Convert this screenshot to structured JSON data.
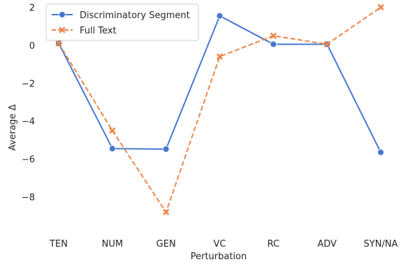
{
  "chart_data": {
    "type": "line",
    "categories": [
      "TEN",
      "NUM",
      "GEN",
      "VC",
      "RC",
      "ADV",
      "SYN/NA"
    ],
    "series": [
      {
        "name": "Discriminatory Segment",
        "values": [
          0.1,
          -5.45,
          -5.48,
          1.55,
          0.05,
          0.05,
          -5.65
        ],
        "color": "#4878d0",
        "marker": "circle",
        "dash": "solid"
      },
      {
        "name": "Full Text",
        "values": [
          0.1,
          -4.5,
          -8.8,
          -0.6,
          0.5,
          0.05,
          2.0
        ],
        "color": "#ee854a",
        "marker": "x",
        "dash": "dashed"
      }
    ],
    "title": "",
    "xlabel": "Perturbation",
    "ylabel": "Average Δ",
    "ylim": [
      -9.3,
      2.2
    ],
    "yticks": [
      2,
      0,
      -2,
      -4,
      -6,
      -8
    ],
    "ytick_labels": [
      "2",
      "0",
      "−2",
      "−4",
      "−6",
      "−8"
    ],
    "grid": false,
    "legend_position": "top-left"
  }
}
